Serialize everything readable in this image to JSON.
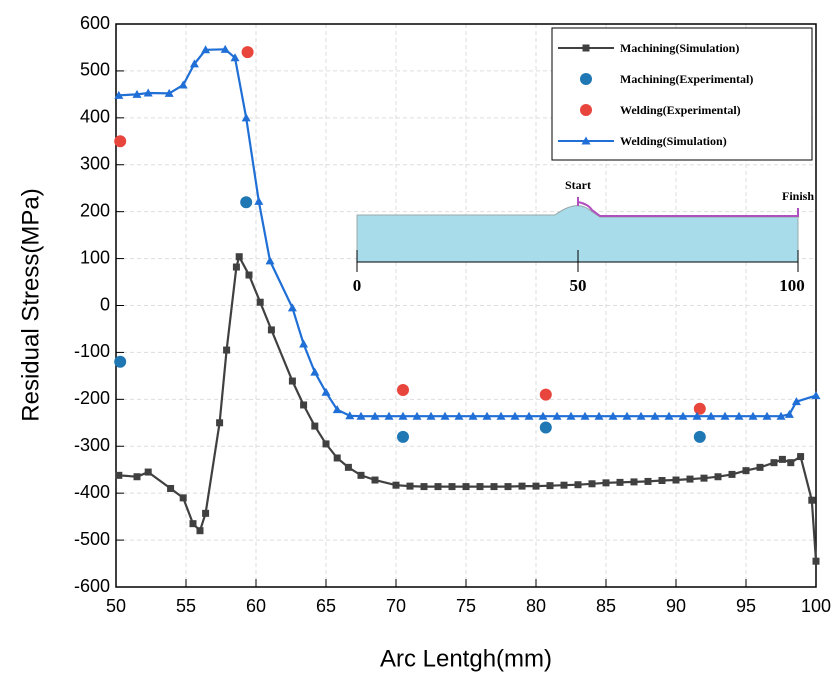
{
  "chart_data": {
    "type": "line",
    "x_label": "Arc Lentgh(mm)",
    "y_label": "Residual Stress(MPa)",
    "xlim": [
      50,
      100
    ],
    "ylim": [
      -600,
      600
    ],
    "xticks": [
      50,
      55,
      60,
      65,
      70,
      75,
      80,
      85,
      90,
      95,
      100
    ],
    "yticks": [
      -600,
      -500,
      -400,
      -300,
      -200,
      -100,
      0,
      100,
      200,
      300,
      400,
      500,
      600
    ],
    "grid": true,
    "legend": "upper right",
    "series": [
      {
        "name": "Machining(Simulation)",
        "color": "#404040",
        "mode": "line",
        "marker": "square",
        "x": [
          50.2,
          51.5,
          52.3,
          53.9,
          54.8,
          55.5,
          56.0,
          56.4,
          57.4,
          57.9,
          58.6,
          58.8,
          59.5,
          60.3,
          61.1,
          62.6,
          63.4,
          64.2,
          65.0,
          65.8,
          66.6,
          67.5,
          68.5,
          70,
          71,
          72,
          73,
          74,
          75,
          76,
          77,
          78,
          79,
          80,
          81,
          82,
          83,
          84,
          85,
          86,
          87,
          88,
          89,
          90,
          91,
          92,
          93,
          94,
          95,
          96,
          97,
          97.6,
          98.2,
          98.9,
          99.7,
          100
        ],
        "values": [
          -362,
          -365,
          -355,
          -390,
          -410,
          -465,
          -480,
          -443,
          -250,
          -95,
          82,
          104,
          65,
          7,
          -52,
          -161,
          -212,
          -257,
          -295,
          -325,
          -345,
          -362,
          -372,
          -383,
          -385,
          -386,
          -386,
          -386,
          -386,
          -386,
          -386,
          -386,
          -385,
          -385,
          -384,
          -383,
          -382,
          -380,
          -378,
          -377,
          -376,
          -375,
          -373,
          -372,
          -370,
          -368,
          -365,
          -360,
          -352,
          -345,
          -335,
          -328,
          -335,
          -322,
          -415,
          -545
        ]
      },
      {
        "name": "Machining(Experimental)",
        "color": "#1f77b4",
        "mode": "scatter",
        "marker": "circle",
        "x": [
          50.3,
          59.3,
          70.5,
          80.7,
          91.7
        ],
        "values": [
          -120,
          220,
          -280,
          -260,
          -280
        ]
      },
      {
        "name": "Welding(Experimental)",
        "color": "#e8453c",
        "mode": "scatter",
        "marker": "circle",
        "x": [
          50.3,
          59.4,
          70.5,
          80.7,
          91.7
        ],
        "values": [
          350,
          540,
          -180,
          -190,
          -220
        ]
      },
      {
        "name": "Welding(Simulation)",
        "color": "#1f6fd6",
        "mode": "line",
        "marker": "triangle",
        "x": [
          50.2,
          51.5,
          52.3,
          53.8,
          54.8,
          55.6,
          56.4,
          57.8,
          58.5,
          59.3,
          60.2,
          61,
          62.6,
          63.4,
          64.2,
          65,
          65.8,
          66.7,
          67.5,
          68.5,
          69.5,
          70.5,
          71.5,
          72.5,
          73.5,
          74.5,
          75.5,
          76.5,
          77.5,
          78.5,
          79.5,
          80.5,
          81.5,
          82.5,
          83.5,
          84.5,
          85.5,
          86.5,
          87.5,
          88.5,
          89.5,
          90.5,
          91.5,
          92.5,
          93.5,
          94.5,
          95.5,
          96.5,
          97.5,
          98.1,
          98.6,
          100
        ],
        "values": [
          448,
          450,
          453,
          452,
          470,
          515,
          545,
          546,
          528,
          400,
          222,
          95,
          -5,
          -82,
          -142,
          -185,
          -222,
          -235,
          -236,
          -236,
          -236,
          -236,
          -236,
          -236,
          -236,
          -236,
          -236,
          -236,
          -236,
          -236,
          -236,
          -236,
          -236,
          -236,
          -236,
          -236,
          -236,
          -236,
          -236,
          -236,
          -236,
          -236,
          -236,
          -236,
          -236,
          -236,
          -236,
          -236,
          -236,
          -232,
          -205,
          -192
        ]
      }
    ],
    "inset": {
      "start": "Start",
      "finish": "Finish",
      "ticks": [
        "0",
        "50",
        "100"
      ]
    }
  }
}
